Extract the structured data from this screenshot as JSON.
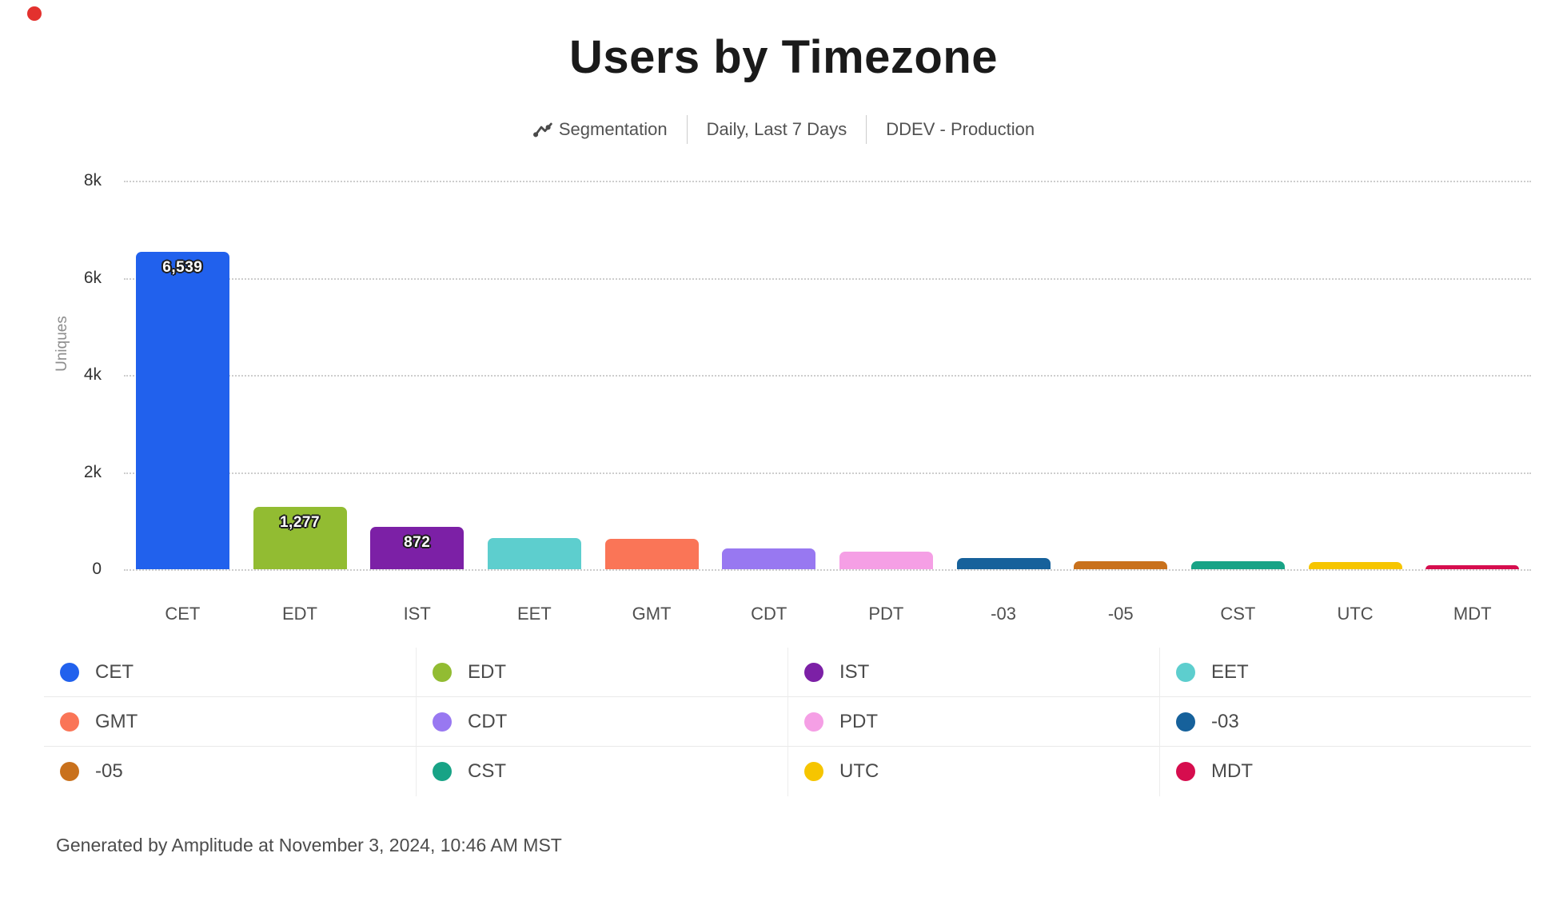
{
  "header": {
    "title": "Users by Timezone",
    "meta": {
      "segmentation": "Segmentation",
      "date_range": "Daily, Last 7 Days",
      "project": "DDEV - Production"
    }
  },
  "chart_data": {
    "type": "bar",
    "title": "Users by Timezone",
    "xlabel": "",
    "ylabel": "Uniques",
    "ylim": [
      0,
      8000
    ],
    "grid": "horizontal-dotted",
    "legend_position": "bottom-grid-4-columns",
    "categories": [
      "CET",
      "EDT",
      "IST",
      "EET",
      "GMT",
      "CDT",
      "PDT",
      "-03",
      "-05",
      "CST",
      "UTC",
      "MDT"
    ],
    "values": [
      6539,
      1277,
      872,
      640,
      630,
      430,
      365,
      230,
      165,
      160,
      150,
      90
    ],
    "value_labels": [
      "6,539",
      "1,277",
      "872",
      "",
      "",
      "",
      "",
      "",
      "",
      "",
      "",
      ""
    ],
    "colors": [
      "#2161ED",
      "#92BC32",
      "#7C20A6",
      "#5DCECE",
      "#FA7557",
      "#9878F1",
      "#F59FE5",
      "#16619B",
      "#C9711C",
      "#18A386",
      "#F6C500",
      "#D60D4E"
    ],
    "yticks": [
      {
        "label": "8k",
        "value": 8000
      },
      {
        "label": "6k",
        "value": 6000
      },
      {
        "label": "4k",
        "value": 4000
      },
      {
        "label": "2k",
        "value": 2000
      },
      {
        "label": "0",
        "value": 0
      }
    ]
  },
  "footer": {
    "text": "Generated by Amplitude at November 3, 2024, 10:46 AM MST"
  },
  "indicator_color": "#E3312E"
}
